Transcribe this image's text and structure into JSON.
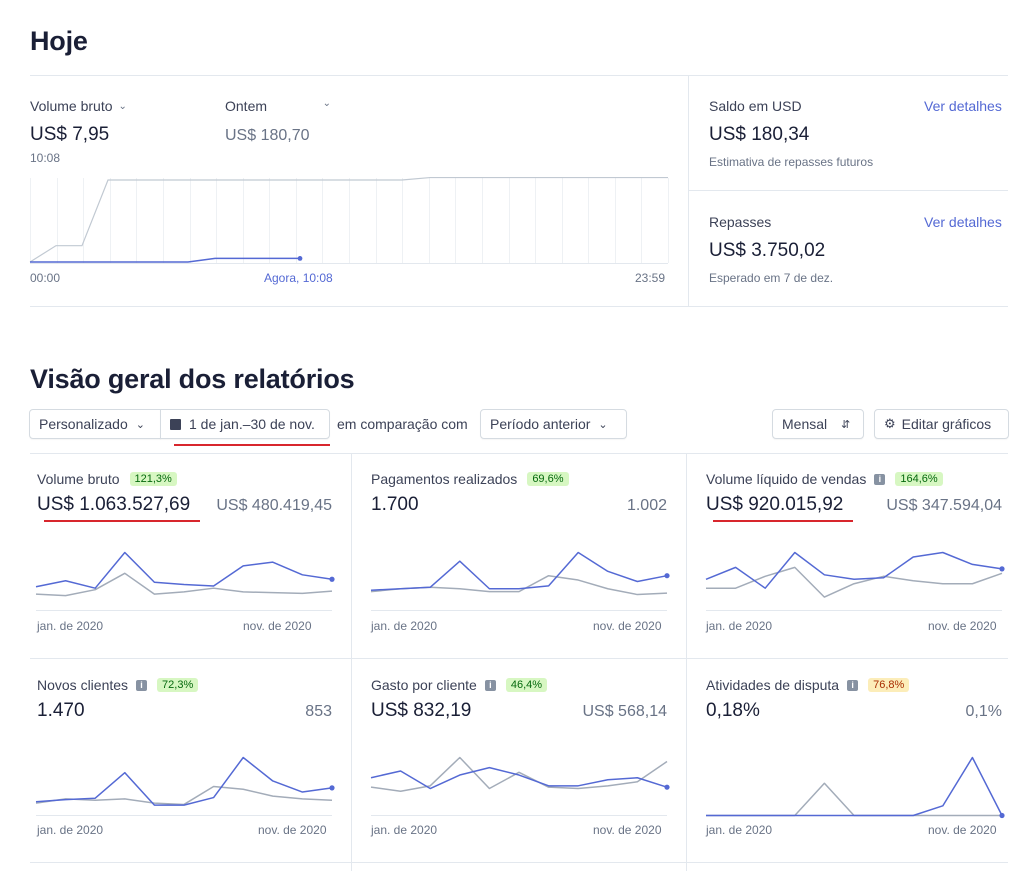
{
  "today": {
    "title": "Hoje",
    "gross_volume_label": "Volume bruto",
    "gross_volume_value": "US$ 7,95",
    "gross_volume_time": "10:08",
    "yesterday_label": "Ontem",
    "yesterday_value": "US$ 180,70",
    "axis_start": "00:00",
    "axis_now": "Agora, 10:08",
    "axis_end": "23:59",
    "balance": {
      "label": "Saldo em USD",
      "link": "Ver detalhes",
      "value": "US$ 180,34",
      "note": "Estimativa de repasses futuros"
    },
    "payouts": {
      "label": "Repasses",
      "link": "Ver detalhes",
      "value": "US$ 3.750,02",
      "note": "Esperado em 7 de dez."
    }
  },
  "reports": {
    "title": "Visão geral dos relatórios",
    "range_select": "Personalizado",
    "date_range": "1 de jan.–30 de nov.",
    "compare_text": "em comparação com",
    "compare_select": "Período anterior",
    "interval_select": "Mensal",
    "edit_charts": "Editar gráficos",
    "cards": [
      {
        "title": "Volume bruto",
        "badge": "121,3%",
        "value": "US$ 1.063.527,69",
        "previous": "US$ 480.419,45",
        "x_start": "jan. de 2020",
        "x_end": "nov. de 2020"
      },
      {
        "title": "Pagamentos realizados",
        "badge": "69,6%",
        "value": "1.700",
        "previous": "1.002",
        "x_start": "jan. de 2020",
        "x_end": "nov. de 2020"
      },
      {
        "title": "Volume líquido de vendas",
        "badge": "164,6%",
        "value": "US$ 920.015,92",
        "previous": "US$ 347.594,04",
        "x_start": "jan. de 2020",
        "x_end": "nov. de 2020"
      },
      {
        "title": "Novos clientes",
        "badge": "72,3%",
        "value": "1.470",
        "previous": "853",
        "x_start": "jan. de 2020",
        "x_end": "nov. de 2020"
      },
      {
        "title": "Gasto por cliente",
        "badge": "46,4%",
        "value": "US$ 832,19",
        "previous": "US$ 568,14",
        "x_start": "jan. de 2020",
        "x_end": "nov. de 2020"
      },
      {
        "title": "Atividades de disputa",
        "badge": "76,8%",
        "value": "0,18%",
        "previous": "0,1%",
        "x_start": "jan. de 2020",
        "x_end": "nov. de 2020"
      }
    ]
  },
  "colors": {
    "current_series": "#5469d4",
    "previous_series": "#a3acb9",
    "highlight_underline": "#d8262d"
  },
  "chart_data": [
    {
      "type": "line",
      "title": "Volume bruto",
      "x_range": [
        "jan. de 2020",
        "nov. de 2020"
      ],
      "series": [
        {
          "values": [
            32,
            40,
            30,
            78,
            38,
            35,
            33,
            60,
            65,
            48,
            42
          ]
        },
        {
          "values": [
            22,
            20,
            28,
            50,
            22,
            25,
            30,
            25,
            24,
            23,
            26
          ]
        }
      ]
    },
    {
      "type": "line",
      "title": "Pagamentos realizados",
      "x_range": [
        "jan. de 2020",
        "nov. de 2020"
      ],
      "series": [
        {
          "values": [
            28,
            30,
            32,
            68,
            30,
            30,
            34,
            80,
            54,
            40,
            48
          ]
        },
        {
          "values": [
            26,
            30,
            32,
            30,
            26,
            26,
            48,
            42,
            30,
            22,
            24
          ]
        }
      ]
    },
    {
      "type": "line",
      "title": "Volume líquido de vendas",
      "x_range": [
        "jan. de 2020",
        "nov. de 2020"
      ],
      "series": [
        {
          "values": [
            42,
            58,
            30,
            78,
            48,
            42,
            44,
            72,
            78,
            62,
            56
          ]
        },
        {
          "values": [
            30,
            30,
            46,
            58,
            18,
            36,
            46,
            40,
            36,
            36,
            50
          ]
        }
      ]
    },
    {
      "type": "line",
      "title": "Novos clientes",
      "x_range": [
        "jan. de 2020",
        "nov. de 2020"
      ],
      "series": [
        {
          "values": [
            20,
            23,
            25,
            62,
            15,
            15,
            26,
            84,
            50,
            34,
            40
          ]
        },
        {
          "values": [
            18,
            24,
            22,
            24,
            18,
            16,
            42,
            38,
            28,
            24,
            22
          ]
        }
      ]
    },
    {
      "type": "line",
      "title": "Gasto por cliente",
      "x_range": [
        "jan. de 2020",
        "nov. de 2020"
      ],
      "series": [
        {
          "values": [
            56,
            66,
            40,
            60,
            71,
            60,
            44,
            44,
            53,
            56,
            42
          ]
        },
        {
          "values": [
            42,
            36,
            44,
            86,
            40,
            64,
            42,
            40,
            44,
            50,
            80
          ]
        }
      ]
    },
    {
      "type": "line",
      "title": "Atividades de disputa",
      "x_range": [
        "jan. de 2020",
        "nov. de 2020"
      ],
      "series": [
        {
          "values": [
            0,
            0,
            0,
            0,
            0,
            0,
            0,
            0,
            0.03,
            0.18,
            0
          ]
        },
        {
          "values": [
            0,
            0,
            0,
            0,
            0.1,
            0,
            0,
            0,
            0,
            0,
            0
          ]
        }
      ]
    }
  ],
  "today_chart": {
    "type": "line",
    "x_range": [
      "00:00",
      "23:59"
    ],
    "series": [
      {
        "name": "Volume bruto",
        "values": [
          0,
          0,
          0,
          0,
          0,
          0,
          0,
          7.95,
          7.95,
          7.95,
          7.95
        ]
      },
      {
        "name": "Ontem",
        "values": [
          0,
          36,
          36,
          180.7,
          180.7,
          180.7,
          180.7,
          180.7,
          180.7,
          180.7,
          180.7
        ]
      }
    ]
  }
}
